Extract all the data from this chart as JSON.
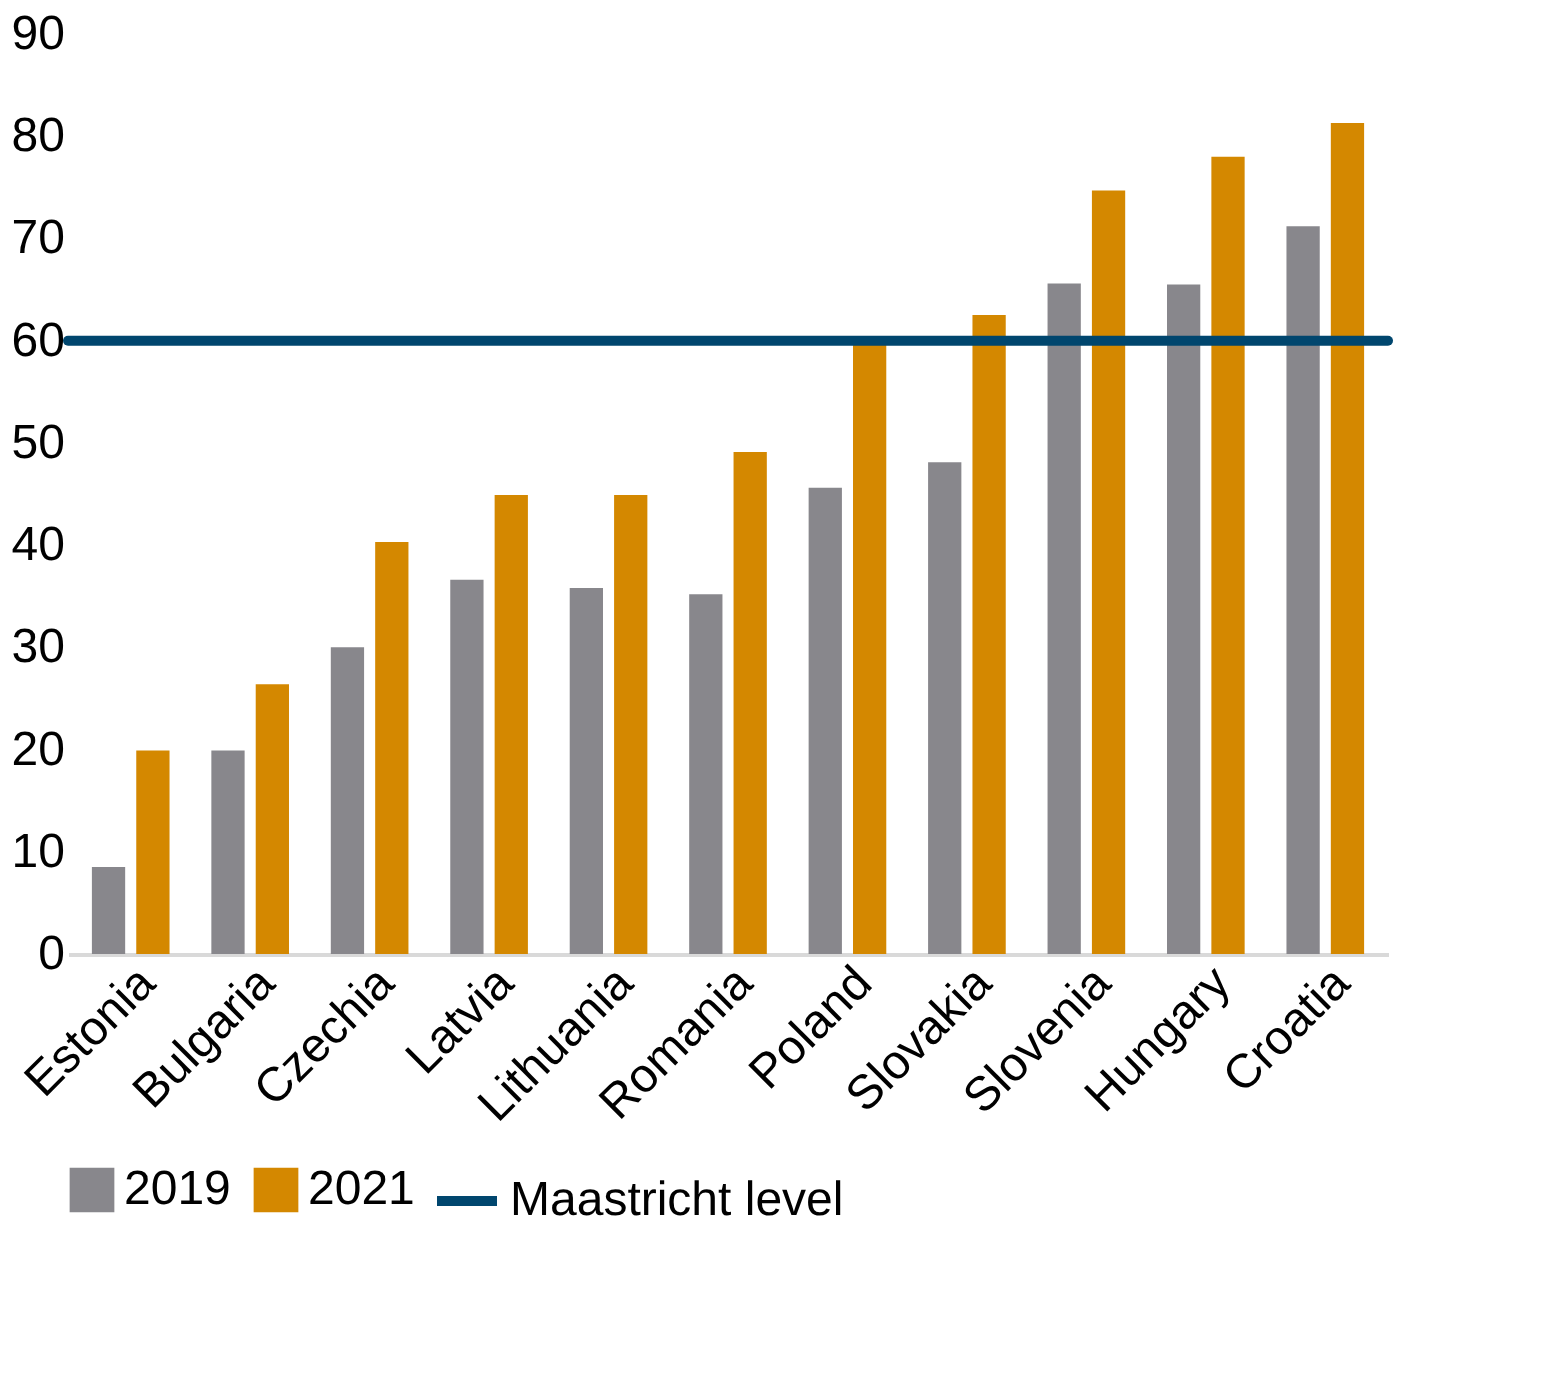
{
  "chart_data": {
    "type": "bar",
    "categories": [
      "Estonia",
      "Bulgaria",
      "Czechia",
      "Latvia",
      "Lithuania",
      "Romania",
      "Poland",
      "Slovakia",
      "Slovenia",
      "Hungary",
      "Croatia"
    ],
    "series": [
      {
        "name": "2019",
        "color": "#88878c",
        "values": [
          8.5,
          19.9,
          30.0,
          36.6,
          35.8,
          35.2,
          45.6,
          48.1,
          65.6,
          65.5,
          71.2
        ]
      },
      {
        "name": "2021",
        "color": "#d48800",
        "values": [
          19.9,
          26.4,
          40.3,
          44.9,
          44.9,
          49.1,
          59.8,
          62.5,
          74.7,
          78.0,
          81.3
        ]
      }
    ],
    "ref_lines": [
      {
        "axis": "y",
        "value": 60,
        "label": "Maastricht level",
        "color": "#00466e"
      }
    ],
    "ylim": [
      0,
      90
    ],
    "yticks": [
      0,
      10,
      20,
      30,
      40,
      50,
      60,
      70,
      80,
      90
    ],
    "grid": false,
    "legend": "bottom"
  }
}
